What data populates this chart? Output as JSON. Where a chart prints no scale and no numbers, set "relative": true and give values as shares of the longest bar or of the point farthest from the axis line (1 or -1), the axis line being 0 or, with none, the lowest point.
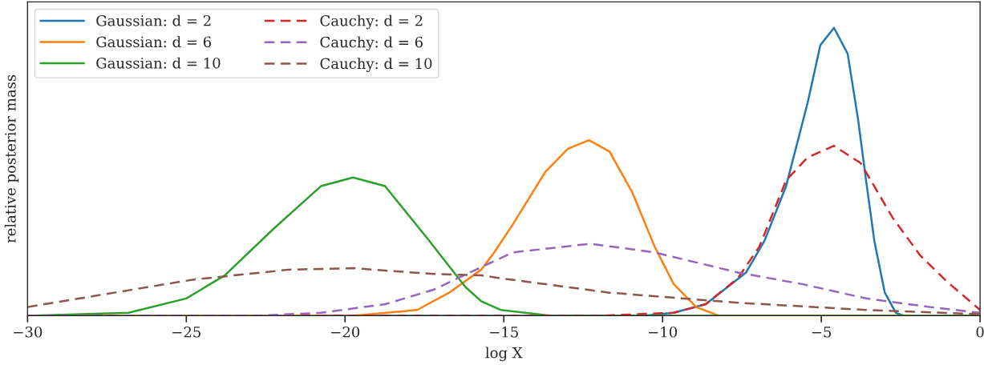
{
  "chart_data": {
    "type": "line",
    "relative": true,
    "xlabel": "log X",
    "ylabel": "relative posterior mass",
    "xlim": [
      -30,
      0
    ],
    "xticks": [
      {
        "value": -30,
        "label": "−30"
      },
      {
        "value": -25,
        "label": "−25"
      },
      {
        "value": -20,
        "label": "−20"
      },
      {
        "value": -15,
        "label": "−15"
      },
      {
        "value": -10,
        "label": "−10"
      },
      {
        "value": -5,
        "label": "−5"
      },
      0
    ],
    "grid": false,
    "legend": "top left",
    "marker": "none",
    "series": [
      {
        "name": "Gaussian: d = 2",
        "color": "#1f77b4",
        "line_style": "solid",
        "x": [
          -30,
          -12,
          -10.6,
          -9.65,
          -8.64,
          -7.37,
          -6.79,
          -6.11,
          -5.43,
          -5.03,
          -4.6,
          -4.17,
          -3.84,
          -3.59,
          -3.33,
          -3.0,
          -2.65,
          -2.4,
          0
        ],
        "values": [
          0,
          0,
          0,
          0.01,
          0.04,
          0.15,
          0.26,
          0.45,
          0.74,
          0.94,
          1.0,
          0.91,
          0.68,
          0.47,
          0.26,
          0.08,
          0.01,
          0,
          0
        ]
      },
      {
        "name": "Gaussian: d = 6",
        "color": "#ff7f0e",
        "line_style": "solid",
        "x": [
          -30,
          -19.75,
          -17.73,
          -16.72,
          -15.71,
          -15.3,
          -14.7,
          -13.69,
          -12.98,
          -12.32,
          -11.67,
          -10.96,
          -10.25,
          -9.65,
          -8.94,
          -8.23,
          0
        ],
        "values": [
          0,
          0,
          0.02,
          0.08,
          0.16,
          0.22,
          0.32,
          0.5,
          0.58,
          0.61,
          0.57,
          0.43,
          0.24,
          0.11,
          0.03,
          0,
          0
        ]
      },
      {
        "name": "Gaussian: d = 10",
        "color": "#2ca02c",
        "line_style": "solid",
        "x": [
          -30,
          -26.82,
          -25.0,
          -23.79,
          -22.27,
          -20.76,
          -19.75,
          -18.74,
          -17.42,
          -16.21,
          -15.71,
          -15.1,
          -13.5,
          0
        ],
        "values": [
          0,
          0.01,
          0.06,
          0.14,
          0.3,
          0.45,
          0.48,
          0.45,
          0.27,
          0.1,
          0.05,
          0.02,
          0,
          0
        ]
      },
      {
        "name": "Cauchy: d = 2",
        "color": "#d62728",
        "line_style": "dashed",
        "x": [
          -30,
          -12,
          -9.65,
          -8.64,
          -7.63,
          -6.95,
          -6.11,
          -5.43,
          -4.6,
          -3.76,
          -2.75,
          -1.89,
          -1.06,
          0
        ],
        "values": [
          0,
          0,
          0.01,
          0.04,
          0.13,
          0.24,
          0.47,
          0.55,
          0.59,
          0.53,
          0.34,
          0.21,
          0.12,
          0.02
        ]
      },
      {
        "name": "Cauchy: d = 6",
        "color": "#9467bd",
        "line_style": "dashed",
        "x": [
          -30,
          -22.8,
          -20.76,
          -18.74,
          -17.22,
          -15.3,
          -14.7,
          -12.27,
          -10.25,
          -7.63,
          -5.61,
          -3.59,
          -1.57,
          0
        ],
        "values": [
          0,
          0,
          0.01,
          0.04,
          0.09,
          0.19,
          0.22,
          0.25,
          0.22,
          0.15,
          0.11,
          0.06,
          0.03,
          0.01
        ]
      },
      {
        "name": "Cauchy: d = 10",
        "color": "#8c564b",
        "line_style": "dashed",
        "x": [
          -30,
          -27.83,
          -24.8,
          -21.77,
          -19.75,
          -17.22,
          -15.71,
          -15.1,
          -11.67,
          -7.63,
          -3.59,
          0
        ],
        "values": [
          0.03,
          0.07,
          0.125,
          0.16,
          0.165,
          0.145,
          0.14,
          0.13,
          0.08,
          0.045,
          0.02,
          0.005
        ]
      }
    ]
  }
}
